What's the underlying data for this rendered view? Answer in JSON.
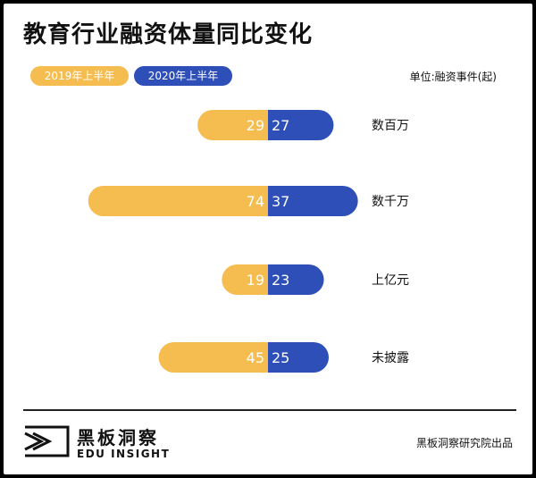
{
  "title": "教育行业融资体量同比变化",
  "unit": "单位:融资事件(起)",
  "colors": {
    "2019": "#f5bd4f",
    "2020": "#2e4fb8"
  },
  "chart_data": {
    "type": "bar",
    "categories": [
      "数百万",
      "数千万",
      "上亿元",
      "未披露"
    ],
    "series": [
      {
        "name": "2019年上半年",
        "values": [
          29,
          74,
          19,
          45
        ]
      },
      {
        "name": "2020年上半年",
        "values": [
          27,
          37,
          23,
          25
        ]
      }
    ],
    "legend_position": "top-left"
  },
  "footer": {
    "logo_cn": "黑板洞察",
    "logo_en": "EDU INSIGHT",
    "source": "黑板洞察研究院出品",
    "logo_icon": "edu-insight-logo-icon"
  }
}
